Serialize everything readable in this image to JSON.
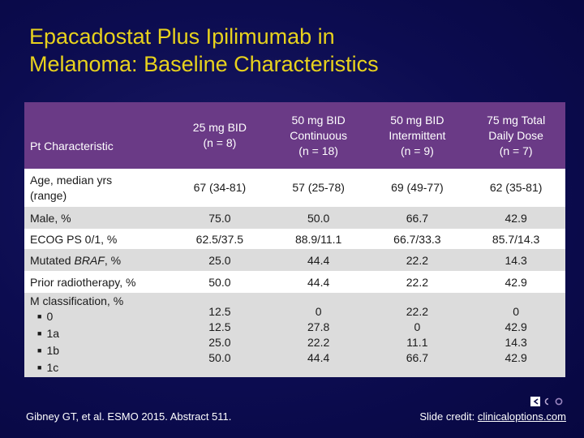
{
  "title": {
    "line1": "Epacadostat Plus Ipilimumab in",
    "line2": "Melanoma: Baseline Characteristics"
  },
  "table": {
    "headers": [
      {
        "lines": [
          "Pt Characteristic"
        ]
      },
      {
        "lines": [
          "25 mg BID",
          "(n = 8)"
        ]
      },
      {
        "lines": [
          "50 mg BID",
          "Continuous",
          "(n = 18)"
        ]
      },
      {
        "lines": [
          "50 mg BID",
          "Intermittent",
          "(n = 9)"
        ]
      },
      {
        "lines": [
          "75 mg Total",
          "Daily Dose",
          "(n = 7)"
        ]
      }
    ],
    "rows": [
      {
        "label_lines": [
          "Age, median yrs",
          "(range)"
        ],
        "values": [
          "67 (34-81)",
          "57 (25-78)",
          "69 (49-77)",
          "62 (35-81)"
        ]
      },
      {
        "label": "Male, %",
        "values": [
          "75.0",
          "50.0",
          "66.7",
          "42.9"
        ]
      },
      {
        "label": "ECOG PS 0/1, %",
        "values": [
          "62.5/37.5",
          "88.9/11.1",
          "66.7/33.3",
          "85.7/14.3"
        ]
      },
      {
        "label_pre": "Mutated ",
        "label_italic": "BRAF",
        "label_post": ", %",
        "values": [
          "25.0",
          "44.4",
          "22.2",
          "14.3"
        ]
      },
      {
        "label": "Prior radiotherapy, %",
        "values": [
          "50.0",
          "44.4",
          "22.2",
          "42.9"
        ]
      },
      {
        "label": "M classification, %",
        "sub_labels": [
          "0",
          "1a",
          "1b",
          "1c"
        ],
        "values": [
          [
            "12.5",
            "12.5",
            "25.0",
            "50.0"
          ],
          [
            "0",
            "27.8",
            "22.2",
            "44.4"
          ],
          [
            "22.2",
            "0",
            "11.1",
            "66.7"
          ],
          [
            "0",
            "42.9",
            "14.3",
            "42.9"
          ]
        ]
      }
    ]
  },
  "footer": {
    "citation": "Gibney GT, et al. ESMO 2015. Abstract 511.",
    "credit_prefix": "Slide credit: ",
    "credit_link": "clinicaloptions.com"
  },
  "colors": {
    "title": "#e8d21d",
    "header_bg": "#6a3a86",
    "row_alt": "#dcdcdc",
    "background": "#0b0b4a"
  },
  "icons": {
    "logo": "cco-logo"
  }
}
